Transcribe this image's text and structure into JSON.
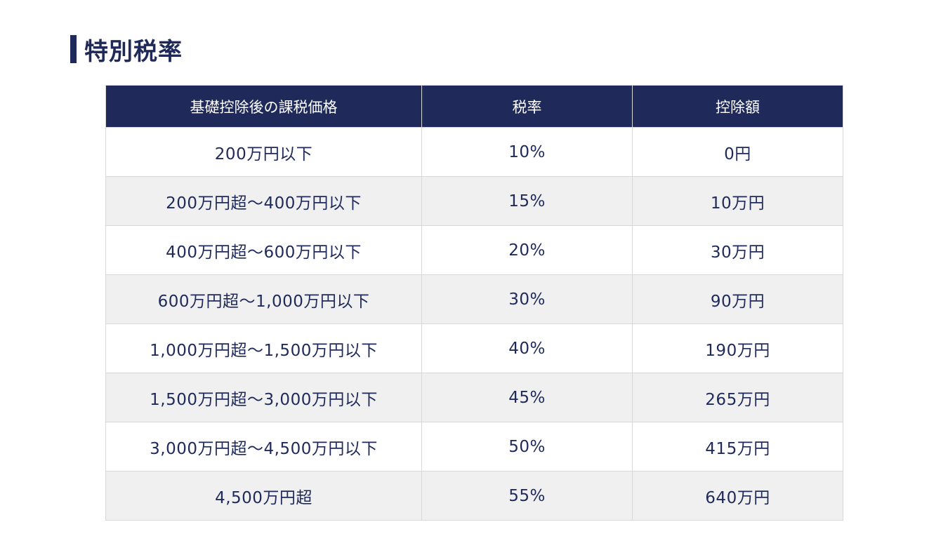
{
  "title": "特別税率",
  "table": {
    "headers": [
      "基礎控除後の課税価格",
      "税率",
      "控除額"
    ],
    "rows": [
      {
        "taxable": "200万円以下",
        "rate": "10%",
        "deduction": "0円"
      },
      {
        "taxable": "200万円超～400万円以下",
        "rate": "15%",
        "deduction": "10万円"
      },
      {
        "taxable": "400万円超～600万円以下",
        "rate": "20%",
        "deduction": "30万円"
      },
      {
        "taxable": "600万円超～1,000万円以下",
        "rate": "30%",
        "deduction": "90万円"
      },
      {
        "taxable": "1,000万円超～1,500万円以下",
        "rate": "40%",
        "deduction": "190万円"
      },
      {
        "taxable": "1,500万円超～3,000万円以下",
        "rate": "45%",
        "deduction": "265万円"
      },
      {
        "taxable": "3,000万円超～4,500万円以下",
        "rate": "50%",
        "deduction": "415万円"
      },
      {
        "taxable": "4,500万円超",
        "rate": "55%",
        "deduction": "640万円"
      }
    ]
  },
  "colors": {
    "accent": "#1f2a5a",
    "row_alt": "#f0f0f0",
    "border": "#d8d8d8"
  }
}
